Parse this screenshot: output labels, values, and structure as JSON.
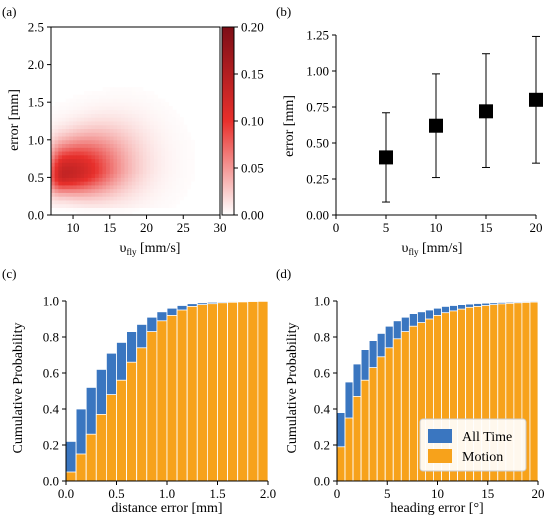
{
  "colors": {
    "all_time": "#3a76c0",
    "motion": "#f7a21b",
    "heat_low": "#ffffff",
    "heat_mid": "#e8302c",
    "heat_high": "#7d0e16"
  },
  "chart_data": [
    {
      "panel": "(a)",
      "type": "heatmap",
      "xlabel": "υ",
      "xlabel_sub": "fly",
      "xlabel_unit": " [mm/s]",
      "ylabel": "error [mm]",
      "xlim": [
        7,
        30
      ],
      "ylim": [
        0,
        2.5
      ],
      "xticks": [
        10,
        15,
        20,
        25,
        30
      ],
      "yticks": [
        0.0,
        0.5,
        1.0,
        1.5,
        2.0,
        2.5
      ],
      "colorbar": {
        "min": 0.0,
        "max": 0.2,
        "ticks": [
          0.0,
          0.05,
          0.1,
          0.15,
          0.2
        ]
      },
      "density_peak": {
        "x": 8.8,
        "y": 0.55,
        "value": 0.13
      }
    },
    {
      "panel": "(b)",
      "type": "scatter",
      "xlabel": "υ",
      "xlabel_sub": "fly",
      "xlabel_unit": " [mm/s]",
      "ylabel": "error [mm]",
      "xlim": [
        0,
        20
      ],
      "ylim": [
        0,
        1.25
      ],
      "xticks": [
        0,
        5,
        10,
        15,
        20
      ],
      "yticks": [
        0.0,
        0.25,
        0.5,
        0.75,
        1.0,
        1.25
      ],
      "x": [
        5,
        10,
        15,
        20
      ],
      "y": [
        0.4,
        0.62,
        0.72,
        0.8
      ],
      "err_low": [
        0.09,
        0.26,
        0.33,
        0.36
      ],
      "err_high": [
        0.71,
        0.98,
        1.12,
        1.24
      ]
    },
    {
      "panel": "(c)",
      "type": "bar",
      "xlabel": "distance error [mm]",
      "ylabel": "Cumulative Probability",
      "xlim": [
        0,
        2.0
      ],
      "ylim": [
        0,
        1.0
      ],
      "xticks": [
        0.0,
        0.5,
        1.0,
        1.5,
        2.0
      ],
      "yticks": [
        0.0,
        0.2,
        0.4,
        0.6,
        0.8,
        1.0
      ],
      "bin_width": 0.1,
      "x": [
        0.05,
        0.15,
        0.25,
        0.35,
        0.45,
        0.55,
        0.65,
        0.75,
        0.85,
        0.95,
        1.05,
        1.15,
        1.25,
        1.35,
        1.45,
        1.55,
        1.65,
        1.75,
        1.85,
        1.95
      ],
      "series": [
        {
          "name": "All Time",
          "values": [
            0.22,
            0.4,
            0.52,
            0.62,
            0.71,
            0.77,
            0.83,
            0.87,
            0.91,
            0.94,
            0.96,
            0.975,
            0.985,
            0.99,
            0.993,
            0.995,
            0.997,
            0.998,
            0.999,
            1.0
          ]
        },
        {
          "name": "Motion",
          "values": [
            0.05,
            0.15,
            0.26,
            0.37,
            0.48,
            0.56,
            0.66,
            0.74,
            0.83,
            0.89,
            0.92,
            0.95,
            0.97,
            0.98,
            0.985,
            0.99,
            0.993,
            0.995,
            0.997,
            0.998
          ]
        }
      ]
    },
    {
      "panel": "(d)",
      "type": "bar",
      "xlabel": "heading error [°]",
      "ylabel": "Cumulative Probability",
      "xlim": [
        0,
        20
      ],
      "ylim": [
        0,
        1.0
      ],
      "xticks": [
        0,
        5,
        10,
        15,
        20
      ],
      "yticks": [
        0.0,
        0.2,
        0.4,
        0.6,
        0.8,
        1.0
      ],
      "bin_width": 0.8,
      "x": [
        0.4,
        1.2,
        2.0,
        2.8,
        3.6,
        4.4,
        5.2,
        6.0,
        6.8,
        7.6,
        8.4,
        9.2,
        10.0,
        10.8,
        11.6,
        12.4,
        13.2,
        14.0,
        14.8,
        15.6,
        16.4,
        17.2,
        18.0,
        18.8,
        19.6
      ],
      "series": [
        {
          "name": "All Time",
          "values": [
            0.38,
            0.55,
            0.65,
            0.73,
            0.78,
            0.82,
            0.86,
            0.89,
            0.91,
            0.93,
            0.94,
            0.95,
            0.96,
            0.97,
            0.975,
            0.98,
            0.983,
            0.986,
            0.988,
            0.99,
            0.992,
            0.993,
            0.995,
            0.997,
            0.998
          ]
        },
        {
          "name": "Motion",
          "values": [
            0.19,
            0.35,
            0.47,
            0.56,
            0.63,
            0.69,
            0.74,
            0.79,
            0.83,
            0.86,
            0.88,
            0.9,
            0.92,
            0.935,
            0.945,
            0.955,
            0.965,
            0.97,
            0.975,
            0.98,
            0.984,
            0.987,
            0.99,
            0.992,
            0.994
          ]
        }
      ],
      "legend": {
        "position": "bottom-right",
        "entries": [
          "All Time",
          "Motion"
        ]
      }
    }
  ]
}
